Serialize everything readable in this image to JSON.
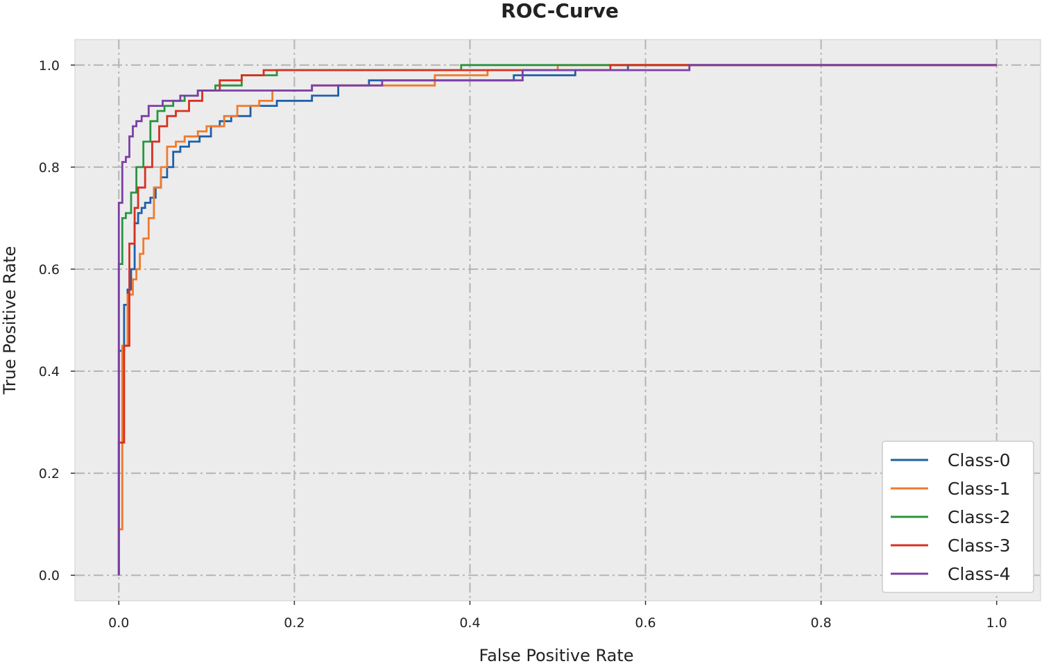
{
  "chart_data": {
    "type": "line",
    "title": "ROC-Curve",
    "xlabel": "False Positive Rate",
    "ylabel": "True Positive Rate",
    "xlim": [
      -0.05,
      1.05
    ],
    "ylim": [
      -0.05,
      1.05
    ],
    "xticks": [
      0.0,
      0.2,
      0.4,
      0.6,
      0.8,
      1.0
    ],
    "xtick_labels": [
      "0.0",
      "0.2",
      "0.4",
      "0.6",
      "0.8",
      "1.0"
    ],
    "yticks": [
      0.0,
      0.2,
      0.4,
      0.6,
      0.8,
      1.0
    ],
    "ytick_labels": [
      "0.0",
      "0.2",
      "0.4",
      "0.6",
      "0.8",
      "1.0"
    ],
    "grid": true,
    "legend_position": "bottom-right",
    "background_color": "#ececec",
    "grid_color": "#b4b4b4",
    "series": [
      {
        "name": "Class-0",
        "color": "#1f5fa8",
        "x": [
          0.0,
          0.0,
          0.006,
          0.006,
          0.01,
          0.01,
          0.014,
          0.014,
          0.018,
          0.018,
          0.022,
          0.022,
          0.026,
          0.026,
          0.03,
          0.03,
          0.036,
          0.036,
          0.042,
          0.042,
          0.048,
          0.048,
          0.055,
          0.055,
          0.062,
          0.062,
          0.07,
          0.07,
          0.08,
          0.08,
          0.092,
          0.092,
          0.105,
          0.105,
          0.115,
          0.115,
          0.128,
          0.128,
          0.15,
          0.15,
          0.18,
          0.18,
          0.22,
          0.22,
          0.25,
          0.25,
          0.285,
          0.285,
          0.38,
          0.38,
          0.45,
          0.45,
          0.52,
          0.52,
          0.58,
          0.58,
          0.65,
          0.65,
          1.0
        ],
        "y": [
          0.0,
          0.44,
          0.44,
          0.53,
          0.53,
          0.56,
          0.56,
          0.6,
          0.6,
          0.69,
          0.69,
          0.71,
          0.71,
          0.72,
          0.72,
          0.73,
          0.73,
          0.74,
          0.74,
          0.76,
          0.76,
          0.78,
          0.78,
          0.8,
          0.8,
          0.83,
          0.83,
          0.84,
          0.84,
          0.85,
          0.85,
          0.86,
          0.86,
          0.88,
          0.88,
          0.89,
          0.89,
          0.9,
          0.9,
          0.92,
          0.92,
          0.93,
          0.93,
          0.94,
          0.94,
          0.96,
          0.96,
          0.97,
          0.97,
          0.97,
          0.97,
          0.98,
          0.98,
          0.99,
          0.99,
          1.0,
          1.0,
          1.0,
          1.0
        ]
      },
      {
        "name": "Class-1",
        "color": "#f07a2c",
        "x": [
          0.0,
          0.0,
          0.004,
          0.004,
          0.01,
          0.01,
          0.016,
          0.016,
          0.02,
          0.02,
          0.024,
          0.024,
          0.028,
          0.028,
          0.034,
          0.034,
          0.04,
          0.04,
          0.048,
          0.048,
          0.055,
          0.055,
          0.065,
          0.065,
          0.075,
          0.075,
          0.09,
          0.09,
          0.1,
          0.1,
          0.12,
          0.12,
          0.135,
          0.135,
          0.16,
          0.16,
          0.175,
          0.175,
          0.22,
          0.22,
          0.36,
          0.36,
          0.42,
          0.42,
          0.5,
          0.5,
          0.6,
          0.6,
          1.0
        ],
        "y": [
          0.0,
          0.09,
          0.09,
          0.45,
          0.45,
          0.55,
          0.55,
          0.58,
          0.58,
          0.6,
          0.6,
          0.63,
          0.63,
          0.66,
          0.66,
          0.7,
          0.7,
          0.76,
          0.76,
          0.8,
          0.8,
          0.84,
          0.84,
          0.85,
          0.85,
          0.86,
          0.86,
          0.87,
          0.87,
          0.88,
          0.88,
          0.9,
          0.9,
          0.92,
          0.92,
          0.93,
          0.93,
          0.95,
          0.95,
          0.96,
          0.96,
          0.98,
          0.98,
          0.99,
          0.99,
          1.0,
          1.0,
          1.0,
          1.0
        ]
      },
      {
        "name": "Class-2",
        "color": "#2a9440",
        "x": [
          0.0,
          0.0,
          0.004,
          0.004,
          0.008,
          0.008,
          0.014,
          0.014,
          0.02,
          0.02,
          0.028,
          0.028,
          0.036,
          0.036,
          0.044,
          0.044,
          0.052,
          0.052,
          0.062,
          0.062,
          0.075,
          0.075,
          0.09,
          0.09,
          0.11,
          0.11,
          0.14,
          0.14,
          0.18,
          0.18,
          0.39,
          0.39,
          1.0
        ],
        "y": [
          0.0,
          0.61,
          0.61,
          0.7,
          0.7,
          0.71,
          0.71,
          0.75,
          0.75,
          0.8,
          0.8,
          0.85,
          0.85,
          0.89,
          0.89,
          0.91,
          0.91,
          0.92,
          0.92,
          0.93,
          0.93,
          0.94,
          0.94,
          0.95,
          0.95,
          0.96,
          0.96,
          0.98,
          0.98,
          0.99,
          0.99,
          1.0,
          1.0
        ]
      },
      {
        "name": "Class-3",
        "color": "#d7301f",
        "x": [
          0.0,
          0.0,
          0.006,
          0.006,
          0.012,
          0.012,
          0.018,
          0.018,
          0.022,
          0.022,
          0.03,
          0.03,
          0.038,
          0.038,
          0.046,
          0.046,
          0.055,
          0.055,
          0.065,
          0.065,
          0.08,
          0.08,
          0.095,
          0.095,
          0.115,
          0.115,
          0.14,
          0.14,
          0.165,
          0.165,
          0.56,
          0.56,
          1.0
        ],
        "y": [
          0.0,
          0.26,
          0.26,
          0.45,
          0.45,
          0.65,
          0.65,
          0.72,
          0.72,
          0.76,
          0.76,
          0.8,
          0.8,
          0.85,
          0.85,
          0.88,
          0.88,
          0.9,
          0.9,
          0.91,
          0.91,
          0.93,
          0.93,
          0.95,
          0.95,
          0.97,
          0.97,
          0.98,
          0.98,
          0.99,
          0.99,
          1.0,
          1.0
        ]
      },
      {
        "name": "Class-4",
        "color": "#7b3fa6",
        "x": [
          0.0,
          0.0,
          0.004,
          0.004,
          0.008,
          0.008,
          0.012,
          0.012,
          0.016,
          0.016,
          0.02,
          0.02,
          0.026,
          0.026,
          0.034,
          0.034,
          0.05,
          0.05,
          0.07,
          0.07,
          0.09,
          0.09,
          0.22,
          0.22,
          0.3,
          0.3,
          0.46,
          0.46,
          0.65,
          0.65,
          1.0
        ],
        "y": [
          0.0,
          0.73,
          0.73,
          0.81,
          0.81,
          0.82,
          0.82,
          0.86,
          0.86,
          0.88,
          0.88,
          0.89,
          0.89,
          0.9,
          0.9,
          0.92,
          0.92,
          0.93,
          0.93,
          0.94,
          0.94,
          0.95,
          0.95,
          0.96,
          0.96,
          0.97,
          0.97,
          0.99,
          0.99,
          1.0,
          1.0
        ]
      }
    ]
  }
}
